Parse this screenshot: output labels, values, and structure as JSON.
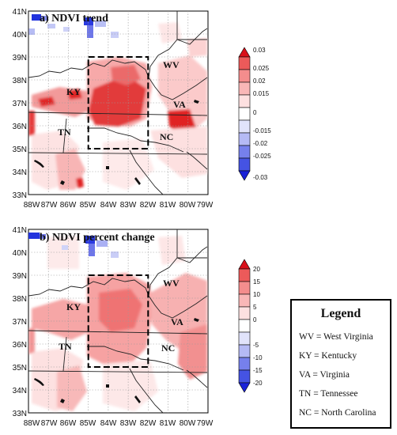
{
  "panels": [
    {
      "title": "a) NDVI trend",
      "lat_labels": [
        "41N",
        "40N",
        "39N",
        "38N",
        "37N",
        "36N",
        "35N",
        "34N",
        "33N"
      ],
      "lon_labels": [
        "88W",
        "87W",
        "86W",
        "85W",
        "84W",
        "83W",
        "82W",
        "81W",
        "80W",
        "79W"
      ],
      "colorbar_ticks": [
        "0.03",
        "0.025",
        "0.02",
        "0.015",
        "0",
        "-0.015",
        "-0.02",
        "-0.025",
        "-0.03"
      ]
    },
    {
      "title": "b) NDVI percent change",
      "lat_labels": [
        "41N",
        "40N",
        "39N",
        "38N",
        "37N",
        "36N",
        "35N",
        "34N",
        "33N"
      ],
      "lon_labels": [
        "88W",
        "87W",
        "86W",
        "85W",
        "84W",
        "83W",
        "82W",
        "81W",
        "80W",
        "79W"
      ],
      "colorbar_ticks": [
        "20",
        "15",
        "10",
        "5",
        "0",
        "-5",
        "-10",
        "-15",
        "-20"
      ]
    }
  ],
  "state_labels": [
    "WV",
    "KY",
    "VA",
    "TN",
    "NC"
  ],
  "study_box": {
    "lon": [
      -85,
      -82
    ],
    "lat": [
      35,
      39
    ]
  },
  "colors": {
    "positive_strong": "#e0191e",
    "positive_mid": "#f58a8a",
    "positive_light": "#fbc9c9",
    "negative_strong": "#1d2ee0",
    "negative_light": "#aab0f0"
  },
  "legend": {
    "title": "Legend",
    "items": [
      "WV = West Virginia",
      "KY = Kentucky",
      "VA = Virginia",
      "TN = Tennessee",
      "NC = North Carolina"
    ]
  }
}
